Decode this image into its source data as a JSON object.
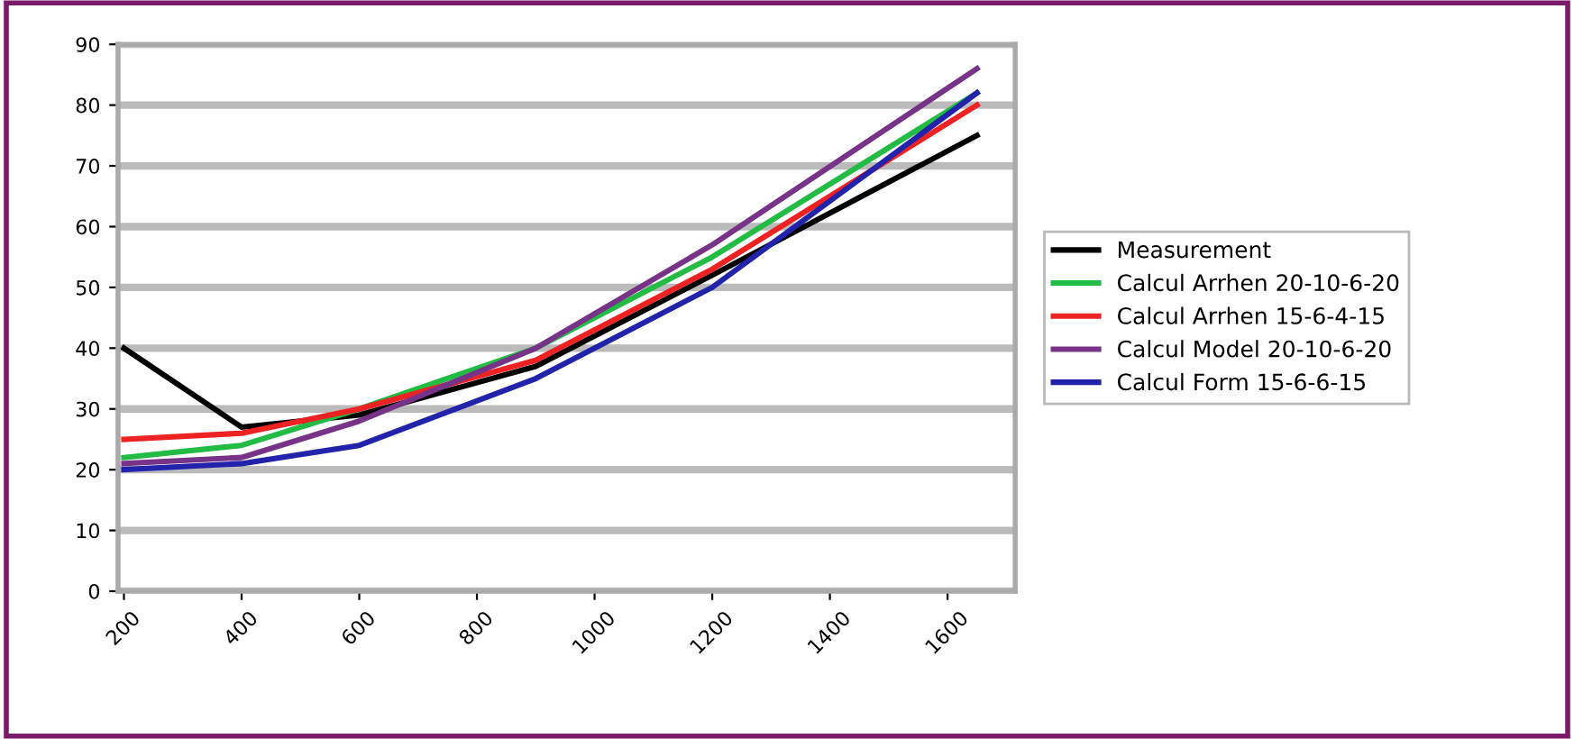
{
  "chart_data": {
    "type": "line",
    "x": [
      200,
      400,
      600,
      900,
      1200,
      1650
    ],
    "xlim": [
      190,
      1715
    ],
    "xticks": [
      200,
      400,
      600,
      800,
      1000,
      1200,
      1400,
      1600
    ],
    "ylim": [
      0,
      90
    ],
    "yticks": [
      0,
      10,
      20,
      30,
      40,
      50,
      60,
      70,
      80,
      90
    ],
    "grid": "y",
    "legend": "right",
    "marker": "none",
    "series": [
      {
        "name": "Measurement",
        "color": "#000000",
        "values": [
          40,
          27,
          29,
          37,
          52,
          75
        ]
      },
      {
        "name": "Calcul Arrhen 20-10-6-20",
        "color": "#22bb44",
        "values": [
          22,
          24,
          30,
          40,
          55,
          82
        ]
      },
      {
        "name": "Calcul Arrhen 15-6-4-15",
        "color": "#ee2222",
        "values": [
          25,
          26,
          30,
          38,
          53,
          80
        ]
      },
      {
        "name": "Calcul Model 20-10-6-20",
        "color": "#773388",
        "values": [
          21,
          22,
          28,
          40,
          57,
          86
        ]
      },
      {
        "name": "Calcul Form 15-6-6-15",
        "color": "#2222aa",
        "values": [
          20,
          21,
          24,
          35,
          50,
          82
        ]
      }
    ]
  }
}
